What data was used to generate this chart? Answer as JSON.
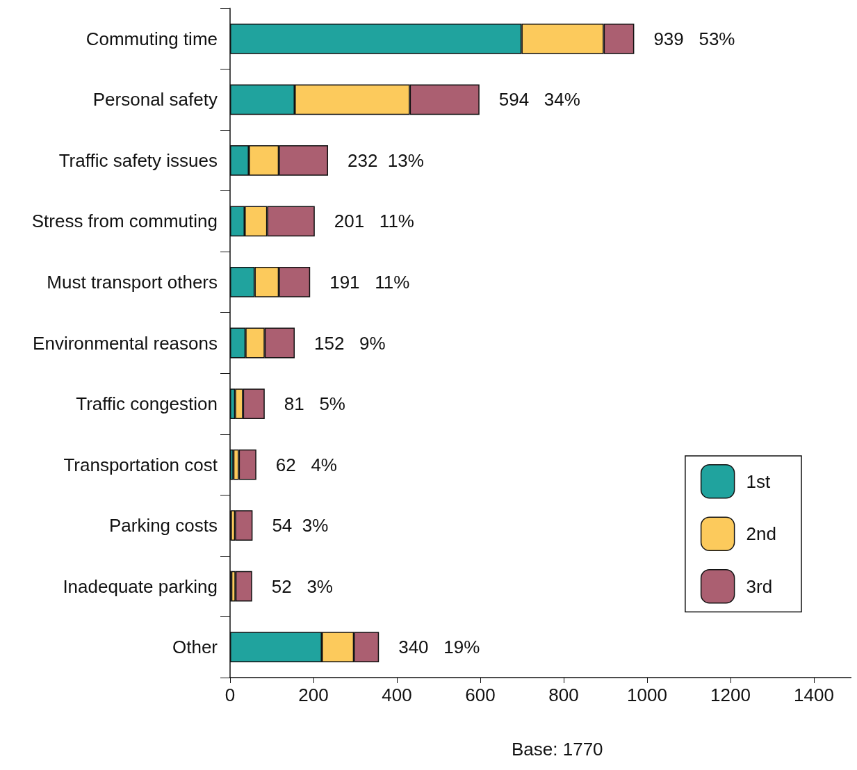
{
  "chart_data": {
    "type": "bar",
    "orientation": "horizontal",
    "stacked": true,
    "categories": [
      "Commuting time",
      "Personal safety",
      "Traffic safety issues",
      "Stress from commuting",
      "Must transport others",
      "Environmental reasons",
      "Traffic congestion",
      "Transportation cost",
      "Parking costs",
      "Inadequate parking",
      "Other"
    ],
    "series": [
      {
        "name": "1st",
        "color": "#20a39e",
        "values": [
          699,
          155,
          45,
          35,
          59,
          37,
          12,
          8,
          2,
          3,
          220
        ]
      },
      {
        "name": "2nd",
        "color": "#fcca5c",
        "values": [
          197,
          276,
          72,
          54,
          58,
          46,
          19,
          13,
          10,
          10,
          77
        ]
      },
      {
        "name": "3rd",
        "color": "#ab5f71",
        "values": [
          73,
          167,
          118,
          114,
          75,
          72,
          52,
          42,
          42,
          40,
          60
        ]
      }
    ],
    "totals": [
      "939   53%",
      "594   34%",
      "232  13%",
      "201   11%",
      "191   11%",
      "152   9%",
      "81   5%",
      "62   4%",
      "54  3%",
      "52   3%",
      "340   19%"
    ],
    "xlim": [
      0,
      1490
    ],
    "xticks": [
      0,
      200,
      400,
      600,
      800,
      1000,
      1200,
      1400
    ],
    "grid": false,
    "legend": "right",
    "annotations": [
      "Base: 1770"
    ]
  }
}
